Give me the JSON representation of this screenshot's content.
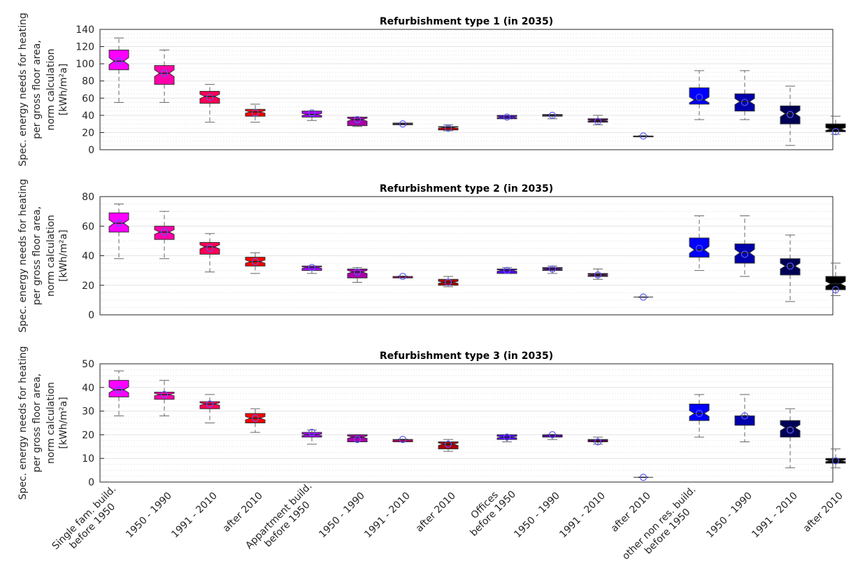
{
  "chart_data": {
    "type": "boxplot",
    "ylabel_lines": [
      "Spec. energy needs for heating",
      "per gross floor area,",
      "norm calculation",
      "[kWh/m²a]"
    ],
    "categories": [
      "Single fam. build.\nbefore 1950",
      "1950 - 1990",
      "1991 - 2010",
      "after 2010",
      "Appartment build.\nbefore 1950",
      "1950 - 1990",
      "1991 - 2010",
      "after 2010",
      "Offices\nbefore 1950",
      "1950 - 1990",
      "1991 - 2010",
      "after 2010",
      "other non res. build.\nbefore 1950",
      "1950 - 1990",
      "1991 - 2010",
      "after 2010"
    ],
    "colors": [
      "#ff00ff",
      "#ff00aa",
      "#ff0055",
      "#ff0000",
      "#aa00ff",
      "#aa00aa",
      "#aa0055",
      "#aa0000",
      "#5500ff",
      "#5500aa",
      "#550055",
      "#550000",
      "#0000ff",
      "#0000aa",
      "#000055",
      "#000000"
    ],
    "grid": true,
    "panels": [
      {
        "title": "Refurbishment type 1 (in 2035)",
        "ylim": [
          0,
          140
        ],
        "yticks": [
          0,
          20,
          40,
          60,
          80,
          100,
          120,
          140
        ],
        "boxes": [
          {
            "wlo": 55,
            "q1": 93,
            "med": 103,
            "q3": 116,
            "whi": 130,
            "mean": 103
          },
          {
            "wlo": 55,
            "q1": 76,
            "med": 89,
            "q3": 98,
            "whi": 116,
            "mean": 89
          },
          {
            "wlo": 32,
            "q1": 54,
            "med": 62,
            "q3": 68,
            "whi": 76,
            "mean": 61
          },
          {
            "wlo": 32,
            "q1": 39,
            "med": 44,
            "q3": 47,
            "whi": 53,
            "mean": 43
          },
          {
            "wlo": 34,
            "q1": 38,
            "med": 41,
            "q3": 45,
            "whi": 45,
            "mean": 43
          },
          {
            "wlo": 27,
            "q1": 28,
            "med": 35,
            "q3": 38,
            "whi": 38,
            "mean": 35
          },
          {
            "wlo": 29,
            "q1": 29,
            "med": 30,
            "q3": 31,
            "whi": 31,
            "mean": 30
          },
          {
            "wlo": 22,
            "q1": 23,
            "med": 26,
            "q3": 27,
            "whi": 29,
            "mean": 25
          },
          {
            "wlo": 36,
            "q1": 36,
            "med": 38,
            "q3": 40,
            "whi": 40,
            "mean": 38
          },
          {
            "wlo": 36,
            "q1": 39,
            "med": 40,
            "q3": 41,
            "whi": 41,
            "mean": 40
          },
          {
            "wlo": 29,
            "q1": 32,
            "med": 34,
            "q3": 36,
            "whi": 40,
            "mean": 33
          },
          {
            "wlo": 15,
            "q1": 15,
            "med": 16,
            "q3": 16,
            "whi": 16,
            "mean": 16
          },
          {
            "wlo": 35,
            "q1": 53,
            "med": 58,
            "q3": 72,
            "whi": 92,
            "mean": 61
          },
          {
            "wlo": 35,
            "q1": 45,
            "med": 56,
            "q3": 65,
            "whi": 92,
            "mean": 55
          },
          {
            "wlo": 5,
            "q1": 30,
            "med": 42,
            "q3": 51,
            "whi": 74,
            "mean": 41
          },
          {
            "wlo": 18,
            "q1": 21,
            "med": 24,
            "q3": 30,
            "whi": 39,
            "mean": 21
          }
        ]
      },
      {
        "title": "Refurbishment type 2 (in 2035)",
        "ylim": [
          0,
          80
        ],
        "yticks": [
          0,
          20,
          40,
          60,
          80
        ],
        "boxes": [
          {
            "wlo": 38,
            "q1": 56,
            "med": 62,
            "q3": 69,
            "whi": 75,
            "mean": 62
          },
          {
            "wlo": 38,
            "q1": 51,
            "med": 56,
            "q3": 60,
            "whi": 70,
            "mean": 56
          },
          {
            "wlo": 29,
            "q1": 41,
            "med": 46,
            "q3": 49,
            "whi": 55,
            "mean": 45
          },
          {
            "wlo": 28,
            "q1": 33,
            "med": 36,
            "q3": 39,
            "whi": 42,
            "mean": 36
          },
          {
            "wlo": 28,
            "q1": 30,
            "med": 32,
            "q3": 33,
            "whi": 33,
            "mean": 32
          },
          {
            "wlo": 22,
            "q1": 25,
            "med": 29,
            "q3": 31,
            "whi": 32,
            "mean": 29
          },
          {
            "wlo": 25,
            "q1": 25,
            "med": 26,
            "q3": 26,
            "whi": 26,
            "mean": 26
          },
          {
            "wlo": 19,
            "q1": 20,
            "med": 22,
            "q3": 24,
            "whi": 26,
            "mean": 22
          },
          {
            "wlo": 28,
            "q1": 28,
            "med": 30,
            "q3": 31,
            "whi": 32,
            "mean": 30
          },
          {
            "wlo": 28,
            "q1": 30,
            "med": 31,
            "q3": 32,
            "whi": 33,
            "mean": 31
          },
          {
            "wlo": 24,
            "q1": 26,
            "med": 27,
            "q3": 28,
            "whi": 31,
            "mean": 27
          },
          {
            "wlo": 12,
            "q1": 12,
            "med": 12,
            "q3": 12,
            "whi": 12,
            "mean": 12
          },
          {
            "wlo": 30,
            "q1": 39,
            "med": 44,
            "q3": 52,
            "whi": 67,
            "mean": 45
          },
          {
            "wlo": 26,
            "q1": 35,
            "med": 42,
            "q3": 48,
            "whi": 67,
            "mean": 41
          },
          {
            "wlo": 9,
            "q1": 27,
            "med": 33,
            "q3": 38,
            "whi": 54,
            "mean": 33
          },
          {
            "wlo": 13,
            "q1": 17,
            "med": 21,
            "q3": 26,
            "whi": 35,
            "mean": 17
          }
        ]
      },
      {
        "title": "Refurbishment type 3 (in 2035)",
        "ylim": [
          0,
          50
        ],
        "yticks": [
          0,
          10,
          20,
          30,
          40,
          50
        ],
        "boxes": [
          {
            "wlo": 28,
            "q1": 36,
            "med": 39,
            "q3": 43,
            "whi": 47,
            "mean": 39
          },
          {
            "wlo": 28,
            "q1": 35,
            "med": 37,
            "q3": 38,
            "whi": 43,
            "mean": 37
          },
          {
            "wlo": 25,
            "q1": 31,
            "med": 33,
            "q3": 34,
            "whi": 37,
            "mean": 33
          },
          {
            "wlo": 21,
            "q1": 25,
            "med": 27,
            "q3": 29,
            "whi": 31,
            "mean": 27
          },
          {
            "wlo": 16,
            "q1": 19,
            "med": 20,
            "q3": 21,
            "whi": 22,
            "mean": 21
          },
          {
            "wlo": 17,
            "q1": 17,
            "med": 19,
            "q3": 20,
            "whi": 20,
            "mean": 18
          },
          {
            "wlo": 17,
            "q1": 17,
            "med": 18,
            "q3": 18,
            "whi": 18,
            "mean": 18
          },
          {
            "wlo": 13,
            "q1": 14,
            "med": 16,
            "q3": 17,
            "whi": 18,
            "mean": 16
          },
          {
            "wlo": 17,
            "q1": 18,
            "med": 19,
            "q3": 20,
            "whi": 20,
            "mean": 19
          },
          {
            "wlo": 18,
            "q1": 19,
            "med": 20,
            "q3": 20,
            "whi": 20,
            "mean": 20
          },
          {
            "wlo": 16,
            "q1": 17,
            "med": 17,
            "q3": 18,
            "whi": 19,
            "mean": 17
          },
          {
            "wlo": 2,
            "q1": 2,
            "med": 2,
            "q3": 2,
            "whi": 2,
            "mean": 2
          },
          {
            "wlo": 19,
            "q1": 26,
            "med": 29,
            "q3": 33,
            "whi": 37,
            "mean": 29
          },
          {
            "wlo": 17,
            "q1": 24,
            "med": 28,
            "q3": 28,
            "whi": 37,
            "mean": 28
          },
          {
            "wlo": 6,
            "q1": 19,
            "med": 23,
            "q3": 26,
            "whi": 31,
            "mean": 22
          },
          {
            "wlo": 6,
            "q1": 8,
            "med": 9,
            "q3": 10,
            "whi": 14,
            "mean": 9
          }
        ]
      }
    ]
  }
}
